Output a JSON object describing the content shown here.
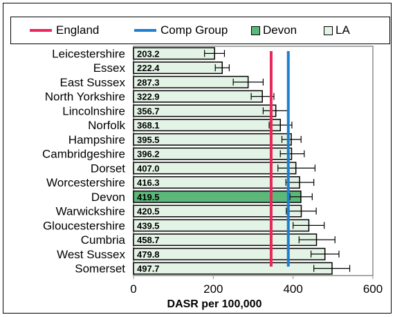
{
  "legend": {
    "england": "England",
    "comp": "Comp Group",
    "devon": "Devon",
    "la": "LA"
  },
  "colors": {
    "england": "#e8285a",
    "comp": "#1c7fd1",
    "devon": "#5cb87a",
    "la": "#e3f3e5"
  },
  "chart_data": {
    "type": "bar",
    "orientation": "horizontal",
    "xlabel": "DASR per 100,000",
    "xlim": [
      0,
      600
    ],
    "xticks": [
      0,
      200,
      400,
      600
    ],
    "categories": [
      "Leicestershire",
      "Essex",
      "East Sussex",
      "North Yorkshire",
      "Lincolnshire",
      "Norfolk",
      "Hampshire",
      "Cambridgeshire",
      "Dorset",
      "Worcestershire",
      "Devon",
      "Warwickshire",
      "Gloucestershire",
      "Cumbria",
      "West Sussex",
      "Somerset"
    ],
    "values": [
      203.2,
      222.4,
      287.3,
      322.9,
      356.7,
      368.1,
      395.5,
      396.2,
      407.0,
      416.3,
      419.5,
      420.5,
      439.5,
      458.7,
      479.8,
      497.7
    ],
    "value_labels": [
      "203.2",
      "222.4",
      "287.3",
      "322.9",
      "356.7",
      "368.1",
      "395.5",
      "396.2",
      "407.0",
      "416.3",
      "419.5",
      "420.5",
      "439.5",
      "458.7",
      "479.8",
      "497.7"
    ],
    "ci_lower": [
      178,
      205,
      250,
      295,
      325,
      340,
      372,
      368,
      362,
      382,
      392,
      383,
      400,
      415,
      445,
      452
    ],
    "ci_upper": [
      228,
      240,
      325,
      352,
      388,
      397,
      420,
      428,
      455,
      452,
      448,
      458,
      478,
      505,
      515,
      542
    ],
    "highlight": "Devon",
    "reference_lines": [
      {
        "name": "England",
        "value": 345
      },
      {
        "name": "Comp Group",
        "value": 388
      }
    ],
    "grid": false,
    "legend_position": "top"
  }
}
